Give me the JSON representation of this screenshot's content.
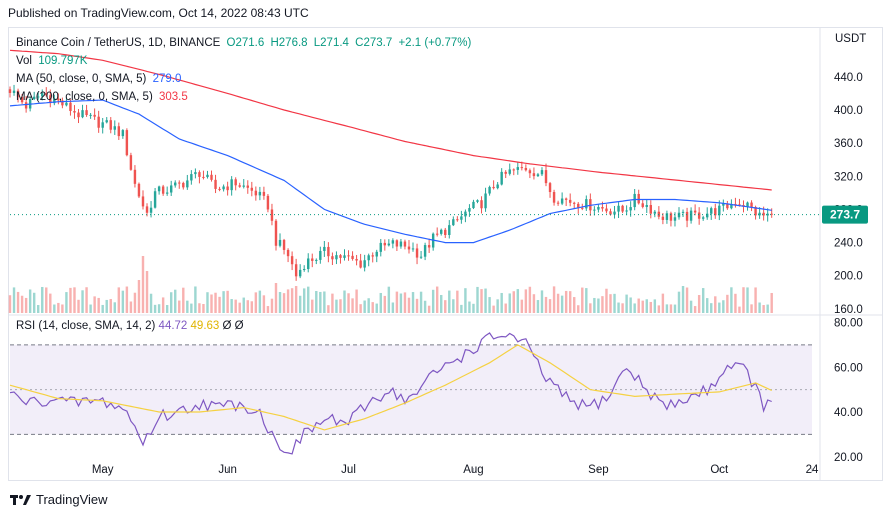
{
  "published": "Published on TradingView.com, Oct 14, 2022 08:43 UTC",
  "brand": "TradingView",
  "colors": {
    "up": "#26a69a",
    "down": "#ef5350",
    "ma50": "#2962ff",
    "ma200": "#f23645",
    "rsi": "#7e57c2",
    "rsi_ma": "#f5d142",
    "last_bg": "#089981"
  },
  "chart_data": [
    {
      "type": "candlestick",
      "title": "Binance Coin / TetherUS, 1D, BINANCE",
      "ohlc_labels": {
        "open": "O271.6",
        "high": "H276.8",
        "low": "L271.4",
        "close": "C273.7",
        "change": "+2.1 (+0.77%)"
      },
      "volume_label": "Vol",
      "volume_value": "109.797K",
      "ma_lines": [
        {
          "label": "MA (50, close, 0, SMA, 5)",
          "value": "279.0",
          "color": "#2962ff"
        },
        {
          "label": "MA (200, close, 0, SMA, 5)",
          "value": "303.5",
          "color": "#f23645"
        }
      ],
      "unit": "USDT",
      "last_price": "273.7",
      "y_ticks": [
        "440.0",
        "400.0",
        "360.0",
        "320.0",
        "280.0",
        "240.0",
        "200.0",
        "160.0"
      ],
      "ylim": [
        155,
        470
      ],
      "x_ticks": [
        "May",
        "Jun",
        "Jul",
        "Aug",
        "Sep",
        "Oct",
        "24"
      ],
      "x_range": [
        "2022-04-08",
        "2022-10-24"
      ],
      "anchors": [
        [
          "2022-04-08",
          425
        ],
        [
          "2022-04-12",
          405
        ],
        [
          "2022-04-16",
          420
        ],
        [
          "2022-04-20",
          410
        ],
        [
          "2022-04-25",
          395
        ],
        [
          "2022-04-30",
          385
        ],
        [
          "2022-05-03",
          380
        ],
        [
          "2022-05-06",
          370
        ],
        [
          "2022-05-09",
          310
        ],
        [
          "2022-05-11",
          285
        ],
        [
          "2022-05-12",
          275
        ],
        [
          "2022-05-14",
          300
        ],
        [
          "2022-05-18",
          305
        ],
        [
          "2022-05-22",
          315
        ],
        [
          "2022-05-25",
          325
        ],
        [
          "2022-05-29",
          305
        ],
        [
          "2022-06-03",
          312
        ],
        [
          "2022-06-08",
          300
        ],
        [
          "2022-06-11",
          285
        ],
        [
          "2022-06-13",
          242
        ],
        [
          "2022-06-16",
          225
        ],
        [
          "2022-06-18",
          200
        ],
        [
          "2022-06-20",
          215
        ],
        [
          "2022-06-25",
          228
        ],
        [
          "2022-06-30",
          222
        ],
        [
          "2022-07-04",
          215
        ],
        [
          "2022-07-08",
          232
        ],
        [
          "2022-07-12",
          238
        ],
        [
          "2022-07-16",
          235
        ],
        [
          "2022-07-19",
          225
        ],
        [
          "2022-07-22",
          245
        ],
        [
          "2022-07-27",
          262
        ],
        [
          "2022-07-31",
          280
        ],
        [
          "2022-08-03",
          288
        ],
        [
          "2022-08-07",
          315
        ],
        [
          "2022-08-10",
          325
        ],
        [
          "2022-08-14",
          330
        ],
        [
          "2022-08-18",
          322
        ],
        [
          "2022-08-21",
          295
        ],
        [
          "2022-08-25",
          290
        ],
        [
          "2022-08-30",
          285
        ],
        [
          "2022-09-03",
          280
        ],
        [
          "2022-09-07",
          278
        ],
        [
          "2022-09-10",
          292
        ],
        [
          "2022-09-13",
          285
        ],
        [
          "2022-09-16",
          273
        ],
        [
          "2022-09-20",
          270
        ],
        [
          "2022-09-24",
          272
        ],
        [
          "2022-09-28",
          276
        ],
        [
          "2022-10-02",
          281
        ],
        [
          "2022-10-05",
          290
        ],
        [
          "2022-10-08",
          285
        ],
        [
          "2022-10-11",
          272
        ],
        [
          "2022-10-14",
          273.7
        ]
      ],
      "ma50_curve": [
        [
          "2022-04-08",
          405
        ],
        [
          "2022-04-20",
          410
        ],
        [
          "2022-05-01",
          412
        ],
        [
          "2022-05-10",
          395
        ],
        [
          "2022-05-20",
          365
        ],
        [
          "2022-06-01",
          345
        ],
        [
          "2022-06-15",
          315
        ],
        [
          "2022-06-25",
          280
        ],
        [
          "2022-07-05",
          262
        ],
        [
          "2022-07-15",
          250
        ],
        [
          "2022-07-25",
          240
        ],
        [
          "2022-08-01",
          240
        ],
        [
          "2022-08-10",
          255
        ],
        [
          "2022-08-20",
          275
        ],
        [
          "2022-08-30",
          285
        ],
        [
          "2022-09-10",
          292
        ],
        [
          "2022-09-20",
          292
        ],
        [
          "2022-10-01",
          288
        ],
        [
          "2022-10-14",
          279
        ]
      ],
      "ma200_curve": [
        [
          "2022-04-08",
          472
        ],
        [
          "2022-04-20",
          468
        ],
        [
          "2022-05-01",
          460
        ],
        [
          "2022-05-15",
          443
        ],
        [
          "2022-06-01",
          420
        ],
        [
          "2022-06-15",
          400
        ],
        [
          "2022-07-01",
          380
        ],
        [
          "2022-07-15",
          362
        ],
        [
          "2022-08-01",
          345
        ],
        [
          "2022-08-15",
          335
        ],
        [
          "2022-09-01",
          325
        ],
        [
          "2022-09-15",
          318
        ],
        [
          "2022-10-01",
          310
        ],
        [
          "2022-10-14",
          303.5
        ]
      ],
      "volume_spikes": [
        [
          "2022-05-10",
          0.55
        ],
        [
          "2022-05-11",
          0.95
        ],
        [
          "2022-05-12",
          0.7
        ],
        [
          "2022-06-13",
          0.5
        ],
        [
          "2022-06-14",
          0.35
        ],
        [
          "2022-06-18",
          0.45
        ]
      ]
    },
    {
      "type": "line",
      "title": "RSI (14, close, SMA, 14, 2)",
      "rsi_value": "44.72",
      "rsi_ma_value": "49.63",
      "extra_values": [
        "Ø",
        "Ø"
      ],
      "y_ticks": [
        "80.00",
        "60.00",
        "40.00",
        "20.00"
      ],
      "ylim": [
        15,
        82
      ],
      "bands": [
        30,
        70
      ],
      "mid": 50,
      "rsi_anchors": [
        [
          "2022-04-08",
          48
        ],
        [
          "2022-04-13",
          44
        ],
        [
          "2022-04-18",
          46
        ],
        [
          "2022-04-23",
          44
        ],
        [
          "2022-04-28",
          45
        ],
        [
          "2022-05-03",
          44
        ],
        [
          "2022-05-07",
          40
        ],
        [
          "2022-05-11",
          26
        ],
        [
          "2022-05-15",
          38
        ],
        [
          "2022-05-20",
          40
        ],
        [
          "2022-05-25",
          44
        ],
        [
          "2022-05-30",
          42
        ],
        [
          "2022-06-04",
          44
        ],
        [
          "2022-06-09",
          40
        ],
        [
          "2022-06-13",
          26
        ],
        [
          "2022-06-17",
          23
        ],
        [
          "2022-06-21",
          32
        ],
        [
          "2022-06-26",
          37
        ],
        [
          "2022-07-01",
          35
        ],
        [
          "2022-07-06",
          44
        ],
        [
          "2022-07-11",
          50
        ],
        [
          "2022-07-16",
          45
        ],
        [
          "2022-07-21",
          55
        ],
        [
          "2022-07-26",
          62
        ],
        [
          "2022-07-31",
          67
        ],
        [
          "2022-08-04",
          72
        ],
        [
          "2022-08-09",
          75
        ],
        [
          "2022-08-14",
          70
        ],
        [
          "2022-08-19",
          55
        ],
        [
          "2022-08-24",
          46
        ],
        [
          "2022-08-29",
          42
        ],
        [
          "2022-09-03",
          46
        ],
        [
          "2022-09-08",
          60
        ],
        [
          "2022-09-13",
          50
        ],
        [
          "2022-09-18",
          42
        ],
        [
          "2022-09-23",
          46
        ],
        [
          "2022-09-28",
          50
        ],
        [
          "2022-10-04",
          62
        ],
        [
          "2022-10-08",
          58
        ],
        [
          "2022-10-12",
          43
        ],
        [
          "2022-10-14",
          44.72
        ]
      ],
      "rsi_ma_anchors": [
        [
          "2022-04-08",
          52
        ],
        [
          "2022-04-20",
          46
        ],
        [
          "2022-05-01",
          45
        ],
        [
          "2022-05-15",
          40
        ],
        [
          "2022-05-25",
          40
        ],
        [
          "2022-06-05",
          42
        ],
        [
          "2022-06-15",
          38
        ],
        [
          "2022-06-25",
          32
        ],
        [
          "2022-07-05",
          37
        ],
        [
          "2022-07-15",
          44
        ],
        [
          "2022-07-25",
          52
        ],
        [
          "2022-08-05",
          62
        ],
        [
          "2022-08-12",
          70
        ],
        [
          "2022-08-20",
          62
        ],
        [
          "2022-08-30",
          50
        ],
        [
          "2022-09-10",
          47
        ],
        [
          "2022-09-20",
          48
        ],
        [
          "2022-10-01",
          49
        ],
        [
          "2022-10-10",
          53
        ],
        [
          "2022-10-14",
          49.63
        ]
      ]
    }
  ]
}
